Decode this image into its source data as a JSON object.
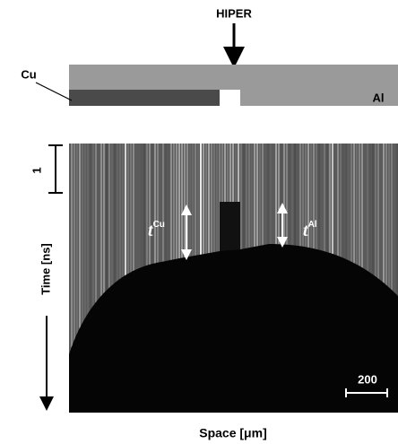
{
  "labels": {
    "laser": "HIPER",
    "cu": "Cu",
    "al": "Al",
    "time_scale": "1",
    "time_axis": "Time [ns]",
    "t_cu": {
      "base": "t",
      "sup": "Cu"
    },
    "t_al": {
      "base": "t",
      "sup": "Al"
    },
    "space_scale": "200",
    "space_axis": "Space [μm]"
  }
}
